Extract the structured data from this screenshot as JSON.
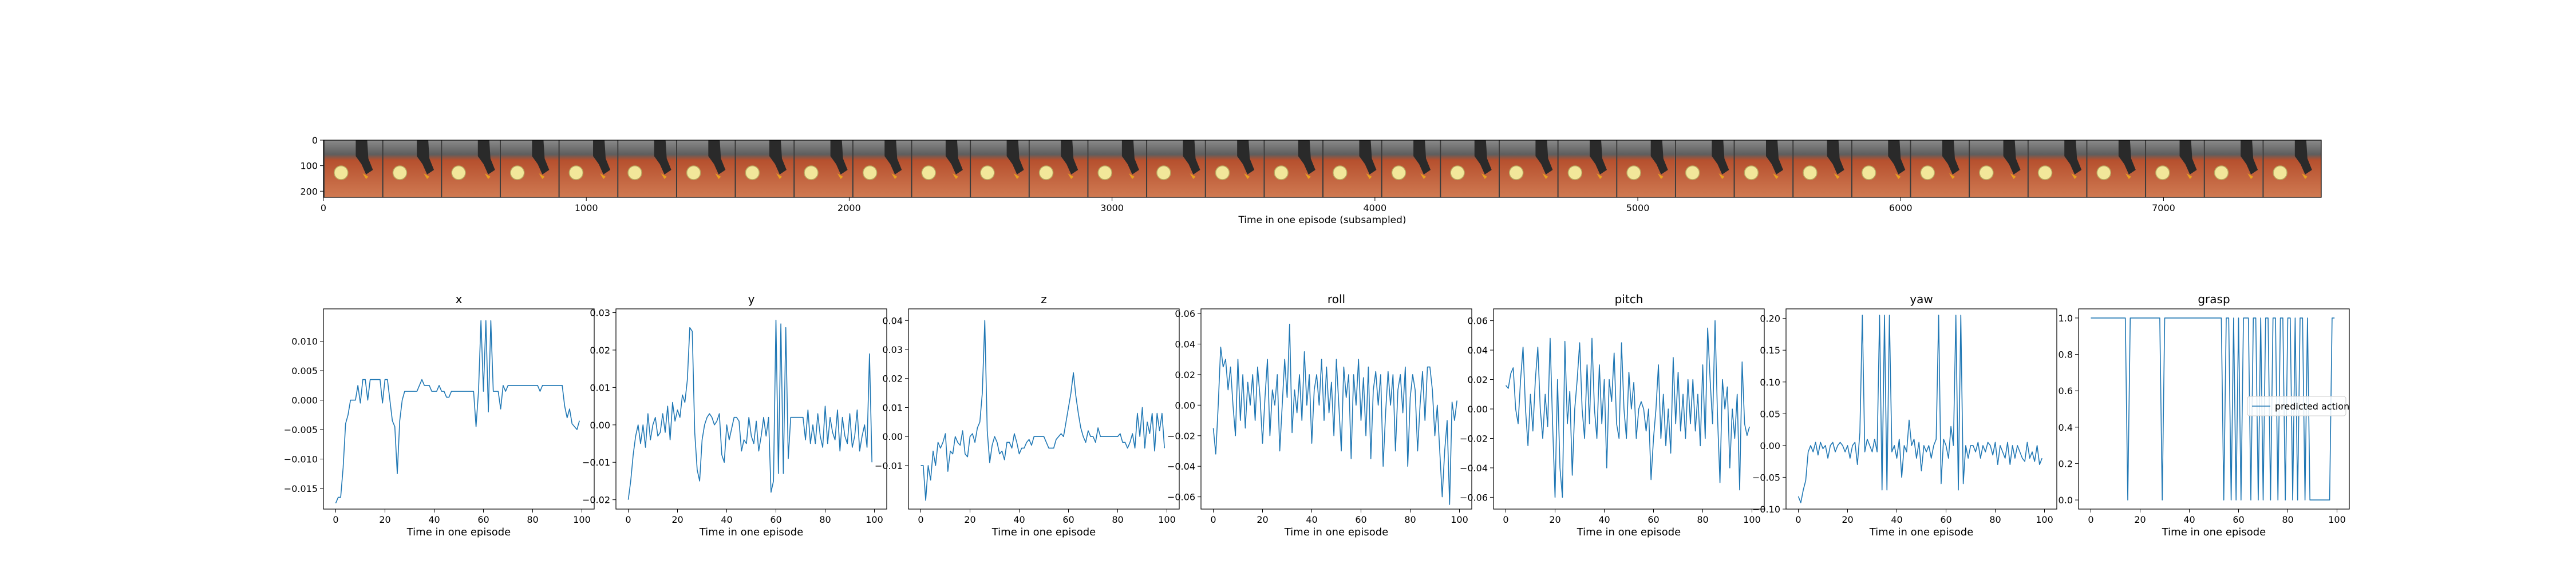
{
  "filmstrip": {
    "xlabel": "Time in one episode (subsampled)",
    "x_ticks": [
      "0",
      "1000",
      "2000",
      "3000",
      "4000",
      "5000",
      "6000",
      "7000"
    ],
    "y_ticks": [
      "0",
      "100",
      "200"
    ],
    "xlim": [
      0,
      7600
    ],
    "ylim": [
      0,
      224
    ],
    "frame_count": 34,
    "image_alt": "robot-arm-camera-frames"
  },
  "colors": {
    "line": "#1f77b4",
    "frame_background": "#c8643c",
    "frame_shadow": "#5f5f5f",
    "gripper": "#2a2a2a",
    "target": "#f2e79a"
  },
  "chart_data": [
    {
      "type": "line",
      "title": "x",
      "xlabel": "Time in one episode",
      "ylabel": "",
      "xlim": [
        -5,
        105
      ],
      "ylim": [
        -0.0185,
        0.0155
      ],
      "x_ticks": [
        0,
        20,
        40,
        60,
        80,
        100
      ],
      "y_ticks": [
        -0.015,
        -0.01,
        -0.005,
        0.0,
        0.005,
        0.01
      ],
      "y_tick_labels": [
        "−0.015",
        "−0.010",
        "−0.005",
        "0.000",
        "0.005",
        "0.010"
      ],
      "grid": false,
      "series": [
        {
          "values": [
            -0.0175,
            -0.0165,
            -0.0165,
            -0.0115,
            -0.004,
            -0.0025,
            0.0,
            0.0,
            0.0,
            0.0025,
            -0.0005,
            0.0035,
            0.0035,
            0.0,
            0.0035,
            0.0035,
            0.0035,
            0.0035,
            0.0035,
            -0.0005,
            0.0035,
            0.0035,
            0.0,
            -0.0035,
            -0.0045,
            -0.0125,
            -0.0035,
            0.0,
            0.0015,
            0.0015,
            0.0015,
            0.0015,
            0.0015,
            0.0015,
            0.0025,
            0.0035,
            0.0025,
            0.0025,
            0.0025,
            0.0015,
            0.0015,
            0.0015,
            0.0025,
            0.0015,
            0.0015,
            0.0005,
            0.0005,
            0.0015,
            0.0015,
            0.0015,
            0.0015,
            0.0015,
            0.0015,
            0.0015,
            0.0015,
            0.0015,
            0.0015,
            -0.0045,
            0.0015,
            0.0135,
            0.0015,
            0.0135,
            -0.002,
            0.0135,
            0.0015,
            0.0015,
            0.0015,
            -0.0015,
            0.0025,
            0.0015,
            0.0025,
            0.0025,
            0.0025,
            0.0025,
            0.0025,
            0.0025,
            0.0025,
            0.0025,
            0.0025,
            0.0025,
            0.0025,
            0.0025,
            0.0025,
            0.0015,
            0.0025,
            0.0025,
            0.0025,
            0.0025,
            0.0025,
            0.0025,
            0.0025,
            0.0025,
            0.0025,
            -0.001,
            -0.003,
            -0.0015,
            -0.004,
            -0.0045,
            -0.005,
            -0.0035
          ]
        }
      ]
    },
    {
      "type": "line",
      "title": "y",
      "xlabel": "Time in one episode",
      "ylabel": "",
      "xlim": [
        -5,
        105
      ],
      "ylim": [
        -0.0225,
        0.031
      ],
      "x_ticks": [
        0,
        20,
        40,
        60,
        80,
        100
      ],
      "y_ticks": [
        -0.02,
        -0.01,
        0.0,
        0.01,
        0.02,
        0.03
      ],
      "y_tick_labels": [
        "−0.02",
        "−0.01",
        "0.00",
        "0.01",
        "0.02",
        "0.03"
      ],
      "grid": false,
      "series": [
        {
          "values": [
            -0.02,
            -0.015,
            -0.008,
            -0.003,
            0.0,
            -0.005,
            0.0,
            -0.006,
            0.003,
            -0.004,
            0.0,
            0.002,
            -0.003,
            -0.002,
            0.003,
            -0.002,
            0.005,
            -0.004,
            0.006,
            0.001,
            0.004,
            0.002,
            0.008,
            0.006,
            0.012,
            0.026,
            0.025,
            -0.002,
            -0.012,
            -0.015,
            -0.004,
            0.0,
            0.002,
            0.003,
            0.002,
            0.0,
            0.001,
            0.003,
            -0.008,
            -0.01,
            0.0,
            -0.004,
            -0.001,
            0.002,
            0.002,
            0.001,
            -0.007,
            -0.004,
            -0.005,
            0.002,
            -0.003,
            -0.005,
            0.001,
            -0.007,
            -0.003,
            0.002,
            -0.003,
            0.002,
            -0.018,
            -0.015,
            0.028,
            -0.013,
            0.027,
            -0.013,
            0.026,
            -0.009,
            0.002,
            0.002,
            0.002,
            0.002,
            0.002,
            0.002,
            -0.004,
            0.004,
            -0.005,
            0.0,
            -0.005,
            0.003,
            -0.003,
            -0.006,
            0.005,
            -0.005,
            0.002,
            -0.002,
            -0.004,
            0.004,
            -0.007,
            0.002,
            -0.003,
            -0.005,
            0.003,
            -0.006,
            -0.003,
            0.004,
            -0.007,
            -0.003,
            0.0,
            -0.006,
            0.019,
            -0.01
          ]
        }
      ]
    },
    {
      "type": "line",
      "title": "z",
      "xlabel": "Time in one episode",
      "ylabel": "",
      "xlim": [
        -5,
        105
      ],
      "ylim": [
        -0.025,
        0.044
      ],
      "x_ticks": [
        0,
        20,
        40,
        60,
        80,
        100
      ],
      "y_ticks": [
        -0.01,
        0.0,
        0.01,
        0.02,
        0.03,
        0.04
      ],
      "y_tick_labels": [
        "−0.01",
        "0.00",
        "0.01",
        "0.02",
        "0.03",
        "0.04"
      ],
      "grid": false,
      "series": [
        {
          "values": [
            -0.01,
            -0.01,
            -0.022,
            -0.01,
            -0.015,
            -0.005,
            -0.01,
            -0.002,
            -0.004,
            -0.002,
            0.001,
            -0.012,
            -0.005,
            -0.006,
            0.0,
            -0.002,
            -0.003,
            0.002,
            -0.006,
            -0.007,
            0.0,
            0.001,
            -0.002,
            0.003,
            0.005,
            0.015,
            0.04,
            0.002,
            -0.009,
            -0.003,
            0.0,
            -0.002,
            -0.006,
            -0.005,
            -0.008,
            -0.002,
            -0.002,
            -0.004,
            0.001,
            -0.002,
            -0.006,
            -0.004,
            -0.004,
            -0.002,
            -0.001,
            -0.003,
            0.0,
            0.0,
            0.0,
            0.0,
            0.0,
            -0.002,
            -0.004,
            -0.004,
            -0.004,
            -0.001,
            0.0,
            0.001,
            0.0,
            0.005,
            0.01,
            0.015,
            0.022,
            0.014,
            0.008,
            0.003,
            0.0,
            -0.002,
            0.002,
            0.0,
            0.0,
            -0.002,
            0.003,
            0.0,
            0.0,
            0.0,
            0.0,
            0.0,
            0.0,
            0.0,
            0.0,
            0.001,
            -0.002,
            -0.002,
            -0.004,
            -0.002,
            0.001,
            -0.004,
            0.008,
            0.0,
            0.01,
            -0.004,
            0.005,
            0.001,
            0.008,
            -0.005,
            0.008,
            0.002,
            0.008,
            -0.004
          ]
        }
      ]
    },
    {
      "type": "line",
      "title": "roll",
      "xlabel": "Time in one episode",
      "ylabel": "",
      "xlim": [
        -5,
        105
      ],
      "ylim": [
        -0.068,
        0.063
      ],
      "x_ticks": [
        0,
        20,
        40,
        60,
        80,
        100
      ],
      "y_ticks": [
        -0.06,
        -0.04,
        -0.02,
        0.0,
        0.02,
        0.04,
        0.06
      ],
      "y_tick_labels": [
        "−0.06",
        "−0.04",
        "−0.02",
        "0.00",
        "0.02",
        "0.04",
        "0.06"
      ],
      "grid": false,
      "series": [
        {
          "values": [
            -0.015,
            -0.032,
            0.0,
            0.038,
            0.025,
            0.03,
            0.01,
            0.025,
            0.0,
            -0.02,
            0.03,
            -0.01,
            0.02,
            -0.015,
            0.015,
            0.0,
            0.02,
            -0.01,
            0.025,
            0.005,
            -0.025,
            0.005,
            0.03,
            -0.02,
            0.01,
            0.0,
            0.02,
            -0.03,
            0.0,
            0.03,
            0.005,
            0.053,
            -0.018,
            0.01,
            -0.005,
            0.02,
            -0.01,
            0.035,
            0.0,
            0.02,
            -0.025,
            0.01,
            0.02,
            0.0,
            0.03,
            -0.01,
            0.025,
            -0.005,
            0.015,
            -0.02,
            0.03,
            0.0,
            -0.03,
            0.025,
            0.005,
            0.02,
            -0.035,
            0.02,
            0.0,
            0.03,
            -0.01,
            0.018,
            -0.02,
            0.025,
            -0.035,
            0.01,
            0.022,
            0.0,
            0.02,
            -0.04,
            -0.005,
            0.022,
            0.0,
            0.02,
            -0.03,
            0.01,
            0.02,
            -0.005,
            0.025,
            -0.04,
            0.005,
            0.02,
            0.01,
            -0.03,
            0.0,
            0.022,
            -0.01,
            0.025,
            0.025,
            0.01,
            -0.02,
            0.0,
            -0.03,
            -0.06,
            -0.03,
            -0.01,
            -0.065,
            0.002,
            -0.01,
            0.003
          ]
        }
      ]
    },
    {
      "type": "line",
      "title": "pitch",
      "xlabel": "Time in one episode",
      "ylabel": "",
      "xlim": [
        -5,
        105
      ],
      "ylim": [
        -0.068,
        0.068
      ],
      "x_ticks": [
        0,
        20,
        40,
        60,
        80,
        100
      ],
      "y_ticks": [
        -0.06,
        -0.04,
        -0.02,
        0.0,
        0.02,
        0.04,
        0.06
      ],
      "y_tick_labels": [
        "−0.06",
        "−0.04",
        "−0.02",
        "0.00",
        "0.02",
        "0.04",
        "0.06"
      ],
      "grid": false,
      "series": [
        {
          "values": [
            0.016,
            0.014,
            0.024,
            0.028,
            0.0,
            -0.01,
            0.02,
            0.042,
            0.0,
            -0.025,
            0.01,
            -0.015,
            0.02,
            0.042,
            0.0,
            -0.02,
            0.01,
            -0.012,
            0.048,
            -0.01,
            -0.06,
            0.02,
            -0.04,
            -0.06,
            0.046,
            -0.01,
            0.012,
            -0.045,
            0.0,
            0.02,
            0.045,
            0.0,
            -0.02,
            0.03,
            -0.01,
            0.048,
            0.0,
            -0.02,
            0.03,
            -0.01,
            0.02,
            -0.04,
            0.02,
            0.005,
            0.038,
            -0.01,
            -0.02,
            0.045,
            0.0,
            -0.02,
            0.025,
            0.0,
            0.018,
            -0.02,
            0.0,
            0.005,
            0.0,
            -0.015,
            0.0,
            -0.048,
            -0.02,
            0.0,
            0.03,
            -0.02,
            0.01,
            -0.025,
            0.0,
            -0.03,
            0.035,
            -0.01,
            0.025,
            -0.015,
            0.01,
            -0.02,
            0.02,
            -0.01,
            0.02,
            -0.015,
            0.01,
            -0.025,
            0.03,
            -0.02,
            0.055,
            0.02,
            -0.01,
            0.06,
            -0.005,
            -0.05,
            0.02,
            0.0,
            0.015,
            -0.04,
            0.0,
            -0.02,
            0.01,
            -0.055,
            0.032,
            -0.01,
            -0.018,
            -0.012
          ]
        }
      ]
    },
    {
      "type": "line",
      "title": "yaw",
      "xlabel": "Time in one episode",
      "ylabel": "",
      "xlim": [
        -5,
        105
      ],
      "ylim": [
        -0.1,
        0.215
      ],
      "x_ticks": [
        0,
        20,
        40,
        60,
        80,
        100
      ],
      "y_ticks": [
        -0.1,
        -0.05,
        0.0,
        0.05,
        0.1,
        0.15,
        0.2
      ],
      "y_tick_labels": [
        "−0.10",
        "−0.05",
        "0.00",
        "0.05",
        "0.10",
        "0.15",
        "0.20"
      ],
      "grid": false,
      "series": [
        {
          "values": [
            -0.08,
            -0.09,
            -0.07,
            -0.055,
            -0.01,
            0.0,
            -0.01,
            0.005,
            -0.015,
            0.005,
            -0.005,
            0.0,
            -0.02,
            0.0,
            0.005,
            -0.01,
            0.0,
            0.005,
            0.0,
            -0.01,
            0.0,
            -0.02,
            0.0,
            0.005,
            -0.03,
            0.02,
            0.205,
            -0.01,
            0.01,
            0.0,
            -0.01,
            0.01,
            -0.01,
            0.205,
            -0.07,
            0.205,
            -0.07,
            0.205,
            -0.01,
            0.0,
            -0.02,
            0.01,
            -0.05,
            0.0,
            -0.01,
            0.04,
            0.0,
            0.01,
            -0.02,
            0.005,
            -0.04,
            0.0,
            -0.01,
            0.0,
            -0.02,
            0.0,
            0.01,
            0.205,
            -0.06,
            0.01,
            0.0,
            -0.02,
            0.03,
            0.0,
            0.205,
            -0.07,
            0.205,
            -0.06,
            0.0,
            -0.02,
            0.0,
            0.0,
            -0.01,
            0.005,
            -0.02,
            0.0,
            -0.01,
            0.005,
            0.0,
            -0.015,
            0.005,
            -0.03,
            0.0,
            -0.01,
            -0.02,
            0.005,
            -0.03,
            0.0,
            -0.02,
            0.0,
            -0.01,
            -0.02,
            -0.025,
            0.005,
            -0.02,
            -0.01,
            -0.025,
            0.0,
            -0.03,
            -0.02
          ]
        }
      ]
    },
    {
      "type": "line",
      "title": "grasp",
      "xlabel": "Time in one episode",
      "ylabel": "",
      "xlim": [
        -5,
        105
      ],
      "ylim": [
        -0.05,
        1.05
      ],
      "x_ticks": [
        0,
        20,
        40,
        60,
        80,
        100
      ],
      "y_ticks": [
        0.0,
        0.2,
        0.4,
        0.6,
        0.8,
        1.0
      ],
      "y_tick_labels": [
        "0.0",
        "0.2",
        "0.4",
        "0.6",
        "0.8",
        "1.0"
      ],
      "grid": false,
      "legend": {
        "placement": "right",
        "entries": [
          "predicted action"
        ]
      },
      "series": [
        {
          "name": "predicted action",
          "values": [
            1,
            1,
            1,
            1,
            1,
            1,
            1,
            1,
            1,
            1,
            1,
            1,
            1,
            1,
            1,
            0,
            1,
            1,
            1,
            1,
            1,
            1,
            1,
            1,
            1,
            1,
            1,
            1,
            1,
            0,
            1,
            1,
            1,
            1,
            1,
            1,
            1,
            1,
            1,
            1,
            1,
            1,
            1,
            1,
            1,
            1,
            1,
            1,
            1,
            1,
            1,
            1,
            1,
            1,
            0,
            1,
            1,
            0,
            1,
            0,
            1,
            0,
            1,
            1,
            1,
            0,
            1,
            1,
            0,
            1,
            0,
            1,
            1,
            0,
            1,
            1,
            0,
            1,
            1,
            0,
            1,
            1,
            0,
            1,
            0,
            1,
            1,
            0,
            1,
            0,
            0,
            0,
            0,
            0,
            0,
            0,
            0,
            0,
            1,
            1
          ]
        }
      ]
    }
  ]
}
